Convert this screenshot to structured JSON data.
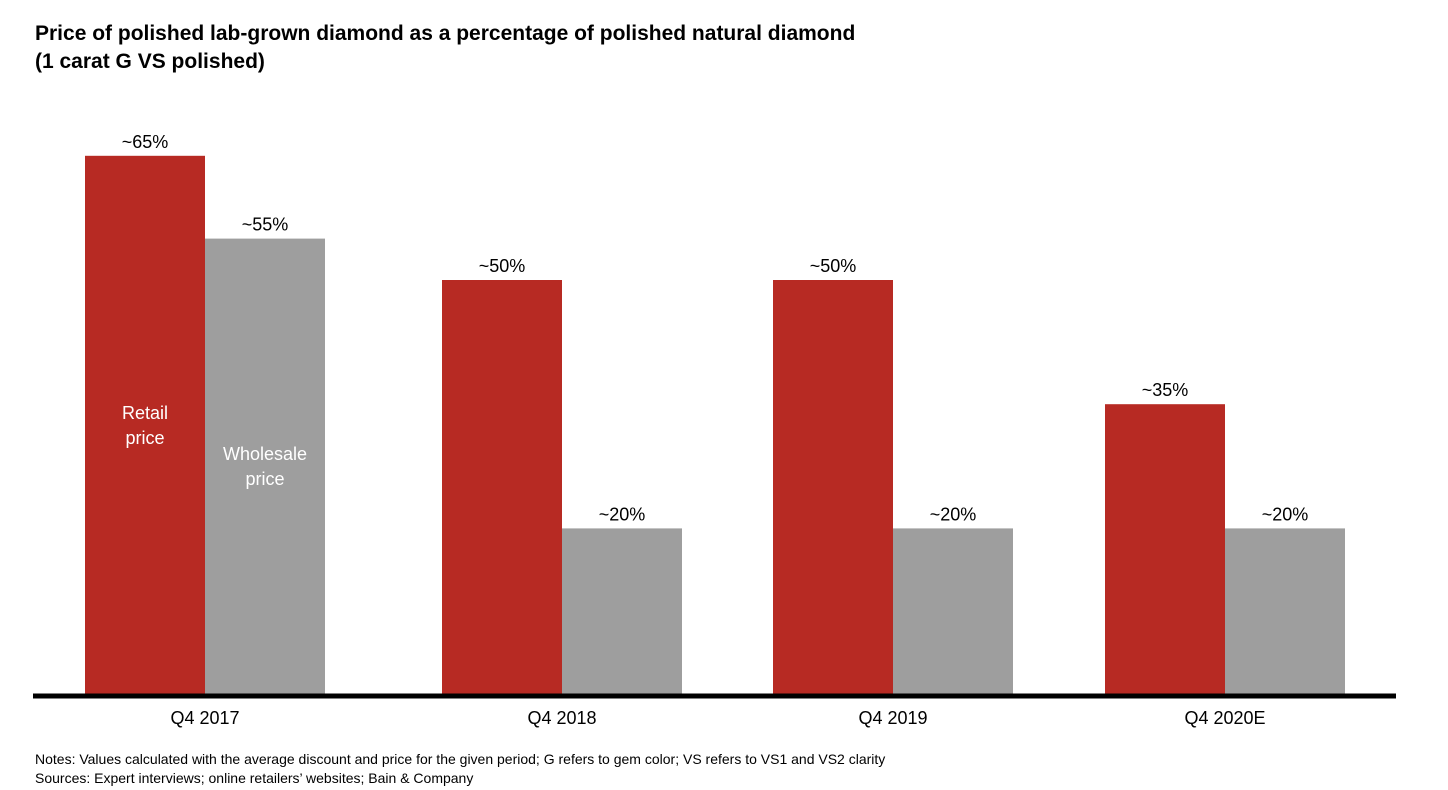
{
  "title": {
    "line1": "Price of polished lab-grown diamond as a percentage of polished natural diamond",
    "line2": "(1 carat G VS polished)"
  },
  "chart_data": {
    "type": "bar",
    "categories": [
      "Q4 2017",
      "Q4 2018",
      "Q4 2019",
      "Q4 2020E"
    ],
    "series": [
      {
        "name": "Retail price",
        "color": "#b72a23",
        "values": [
          65,
          50,
          50,
          35
        ],
        "labels": [
          "~65%",
          "~50%",
          "~50%",
          "~35%"
        ],
        "legend_lines": [
          "Retail",
          "price"
        ]
      },
      {
        "name": "Wholesale price",
        "color": "#9e9e9e",
        "values": [
          55,
          20,
          20,
          20
        ],
        "labels": [
          "~55%",
          "~20%",
          "~20%",
          "~20%"
        ],
        "legend_lines": [
          "Wholesale",
          "price"
        ]
      }
    ],
    "ylim": [
      0,
      65
    ],
    "grid": false,
    "legend_placement": "inside first bars",
    "axis_color": "#000000",
    "label_text_color": "#000000",
    "legend_text_color": "#ffffff"
  },
  "notes": {
    "notes_line": "Notes: Values calculated with the average discount and price for the given period; G refers to gem color; VS refers to VS1 and VS2 clarity",
    "sources_line": "Sources: Expert interviews; online retailers’ websites; Bain & Company"
  }
}
